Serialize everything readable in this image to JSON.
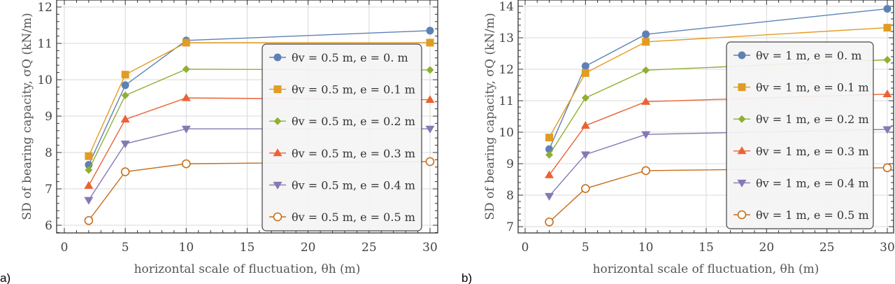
{
  "colors": {
    "blue": "#5e81b5",
    "orange": "#e19c24",
    "green": "#8fb032",
    "red": "#eb6235",
    "purple": "#8778b3",
    "brown": "#c56e1a"
  },
  "chart_data": [
    {
      "panel_label": "a)",
      "type": "line",
      "xlabel": "horizontal scale of fluctuation, θh (m)",
      "ylabel": "SD of bearing capacity, σQ (kN/m)",
      "xlim": [
        0,
        30.5
      ],
      "ylim": [
        5.8,
        12.2
      ],
      "xticks": [
        0,
        5,
        10,
        15,
        20,
        25,
        30
      ],
      "yticks": [
        6,
        7,
        8,
        9,
        10,
        11,
        12
      ],
      "grid": true,
      "legend_placement": "center-right",
      "x": [
        2,
        5,
        10,
        30
      ],
      "series": [
        {
          "name": "θv = 0.5 m, e = 0. m",
          "marker": "circle",
          "color": "#5e81b5",
          "values": [
            7.66,
            9.85,
            11.08,
            11.35
          ]
        },
        {
          "name": "θv = 0.5 m, e = 0.1 m",
          "marker": "square",
          "color": "#e19c24",
          "values": [
            7.9,
            10.14,
            11.02,
            11.02
          ]
        },
        {
          "name": "θv = 0.5 m, e = 0.2 m",
          "marker": "diamond",
          "color": "#8fb032",
          "values": [
            7.52,
            9.57,
            10.29,
            10.27
          ]
        },
        {
          "name": "θv = 0.5 m, e = 0.3 m",
          "marker": "triangle-up",
          "color": "#eb6235",
          "values": [
            7.09,
            8.91,
            9.5,
            9.45
          ]
        },
        {
          "name": "θv = 0.5 m, e = 0.4 m",
          "marker": "triangle-down",
          "color": "#8778b3",
          "values": [
            6.69,
            8.24,
            8.65,
            8.65
          ]
        },
        {
          "name": "θv = 0.5 m, e = 0.5 m",
          "marker": "open-circle",
          "color": "#c56e1a",
          "values": [
            6.13,
            7.47,
            7.69,
            7.75
          ]
        }
      ]
    },
    {
      "panel_label": "b)",
      "type": "line",
      "xlabel": "horizontal scale of fluctuation, θh (m)",
      "ylabel": "SD of bearing capacity, σQ (kN/m)",
      "xlim": [
        0,
        30.5
      ],
      "ylim": [
        6.8,
        14.2
      ],
      "xticks": [
        0,
        5,
        10,
        15,
        20,
        25,
        30
      ],
      "yticks": [
        7,
        8,
        9,
        10,
        11,
        12,
        13,
        14
      ],
      "grid": true,
      "legend_placement": "center-right",
      "x": [
        2,
        5,
        10,
        30
      ],
      "series": [
        {
          "name": "θv = 1 m, e = 0. m",
          "marker": "circle",
          "color": "#5e81b5",
          "values": [
            9.46,
            12.1,
            13.11,
            13.92
          ]
        },
        {
          "name": "θv = 1 m, e = 0.1 m",
          "marker": "square",
          "color": "#e19c24",
          "values": [
            9.83,
            11.88,
            12.87,
            13.32
          ]
        },
        {
          "name": "θv = 1 m, e = 0.2 m",
          "marker": "diamond",
          "color": "#8fb032",
          "values": [
            9.28,
            11.09,
            11.97,
            12.3
          ]
        },
        {
          "name": "θv = 1 m, e = 0.3 m",
          "marker": "triangle-up",
          "color": "#eb6235",
          "values": [
            8.64,
            10.21,
            10.97,
            11.21
          ]
        },
        {
          "name": "θv = 1 m, e = 0.4 m",
          "marker": "triangle-down",
          "color": "#8778b3",
          "values": [
            7.97,
            9.29,
            9.93,
            10.09
          ]
        },
        {
          "name": "θv = 1 m, e = 0.5 m",
          "marker": "open-circle",
          "color": "#c56e1a",
          "values": [
            7.15,
            8.21,
            8.78,
            8.87
          ]
        }
      ]
    }
  ]
}
